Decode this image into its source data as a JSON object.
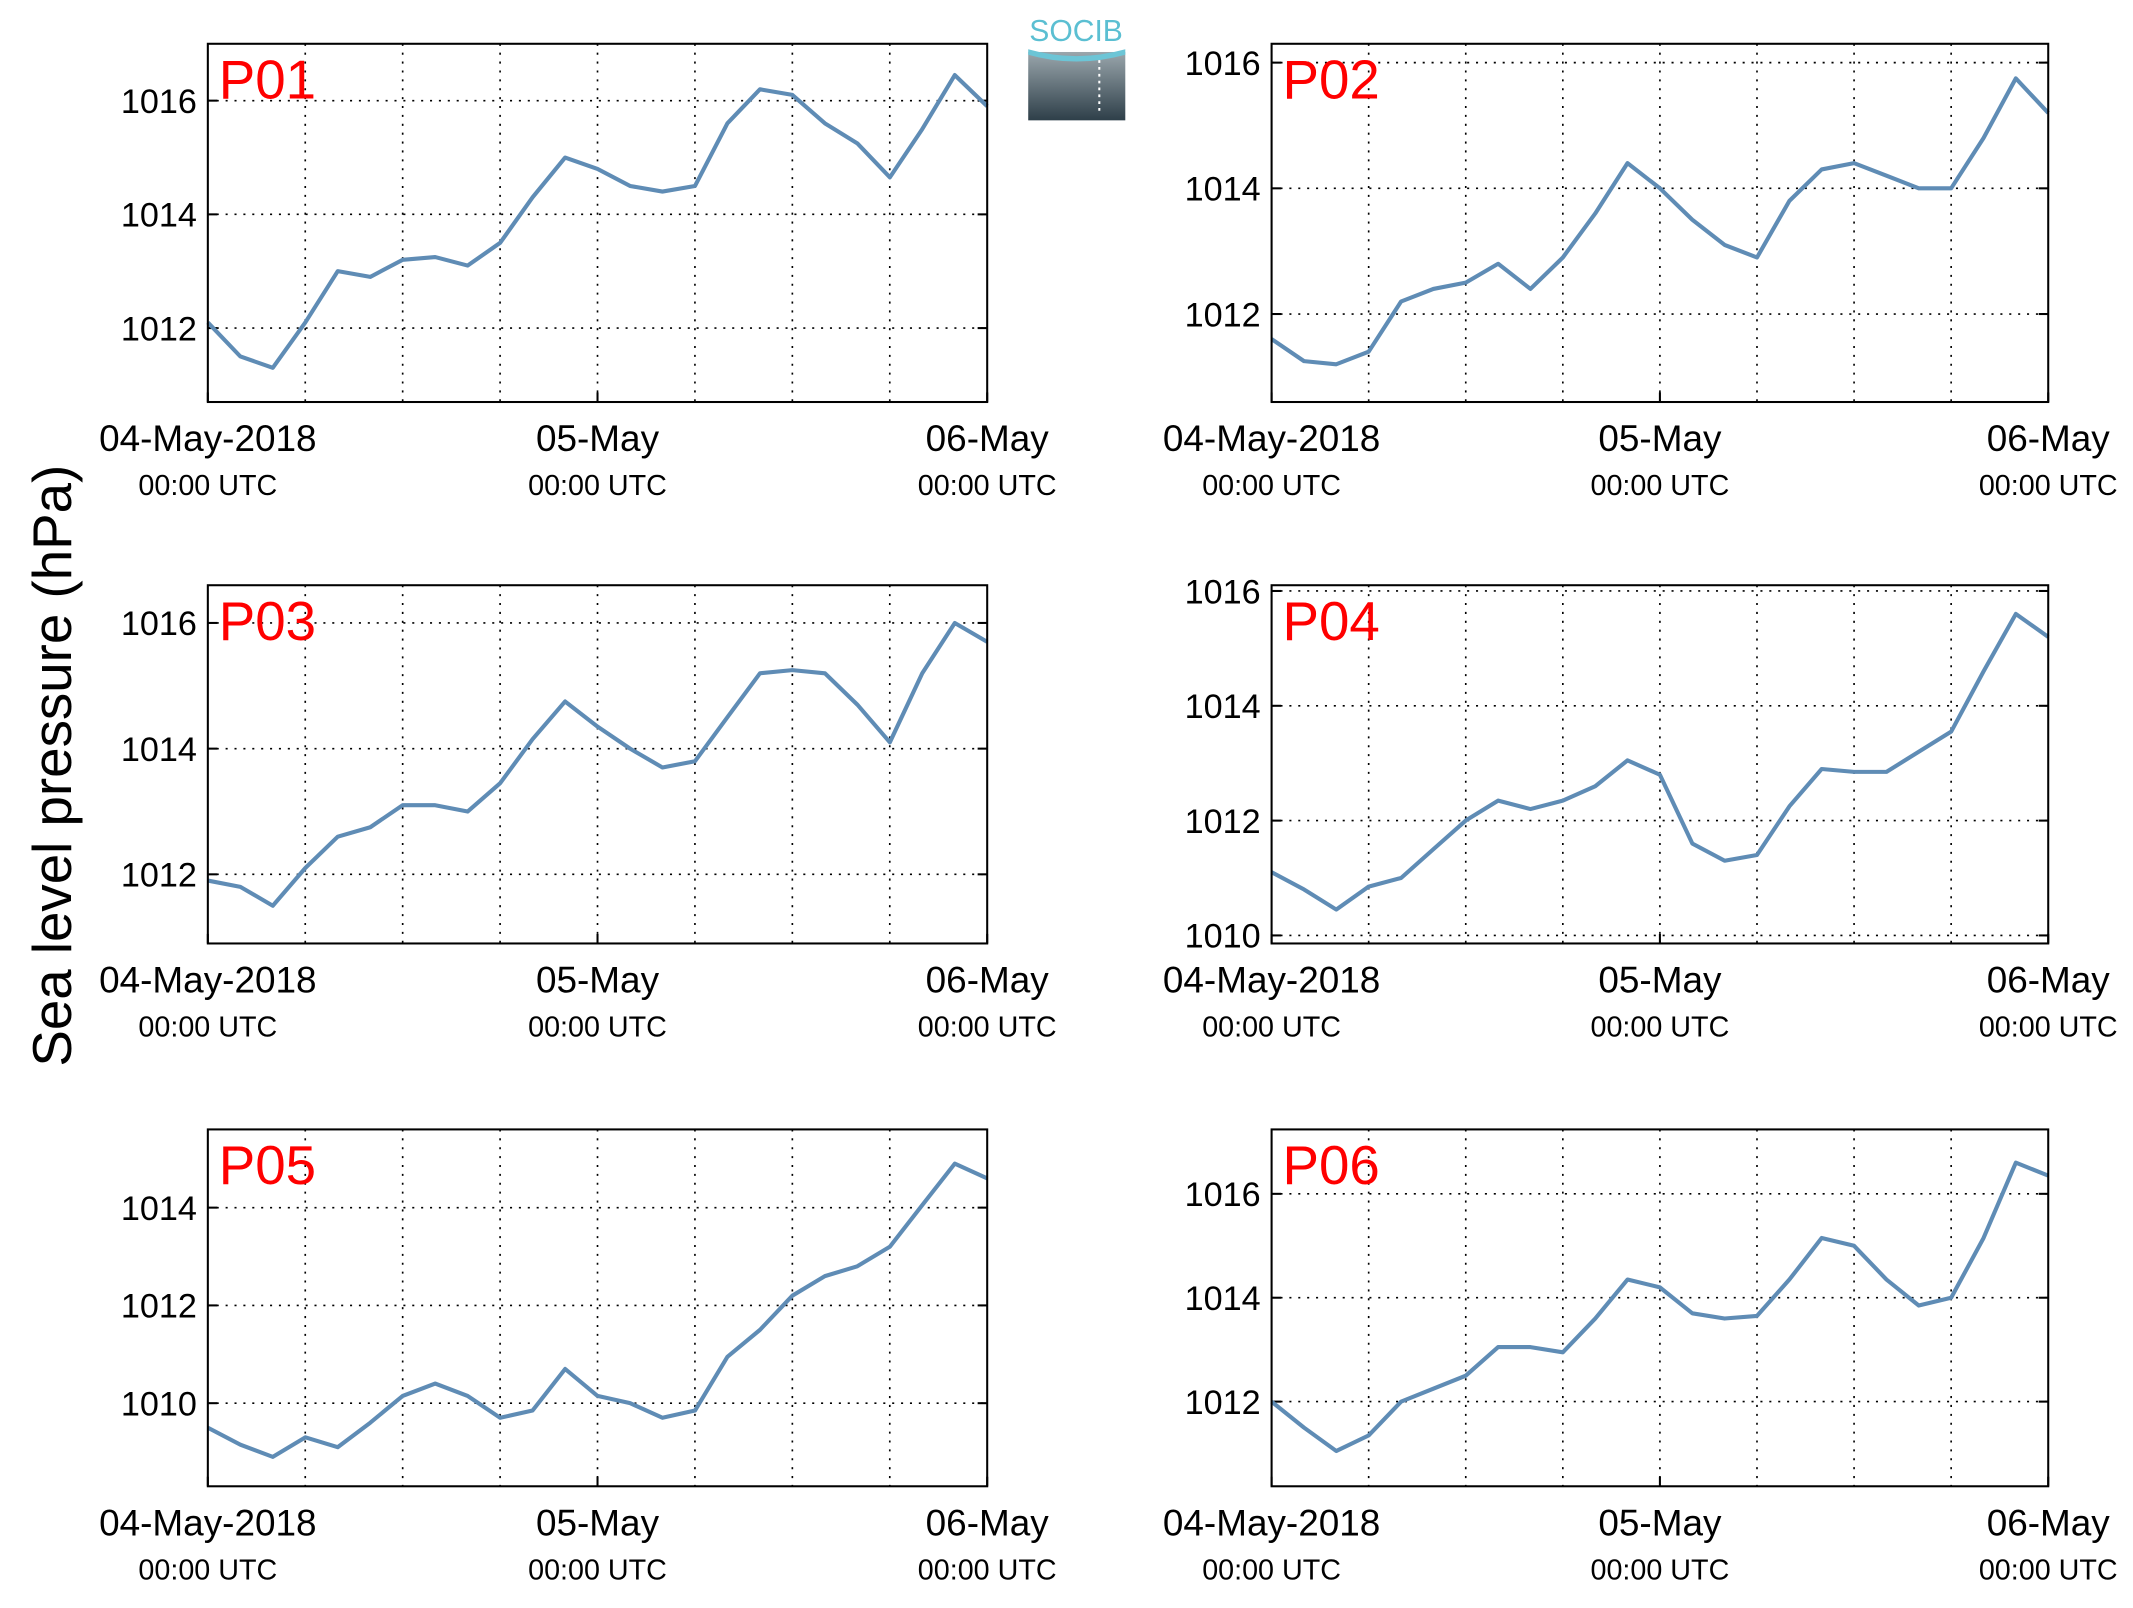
{
  "ylabel": "Sea level pressure (hPa)",
  "logo": "SOCIB",
  "chart_data": [
    {
      "type": "line",
      "title": "P01",
      "color": "#5f8cb5",
      "grid": true,
      "x": [
        "2018-05-04T00:00",
        "2018-05-04T02:00",
        "2018-05-04T04:00",
        "2018-05-04T06:00",
        "2018-05-04T08:00",
        "2018-05-04T10:00",
        "2018-05-04T12:00",
        "2018-05-04T14:00",
        "2018-05-04T16:00",
        "2018-05-04T18:00",
        "2018-05-04T20:00",
        "2018-05-04T22:00",
        "2018-05-05T00:00",
        "2018-05-05T02:00",
        "2018-05-05T04:00",
        "2018-05-05T06:00",
        "2018-05-05T08:00",
        "2018-05-05T10:00",
        "2018-05-05T12:00",
        "2018-05-05T14:00",
        "2018-05-05T16:00",
        "2018-05-05T18:00",
        "2018-05-05T20:00",
        "2018-05-05T22:00",
        "2018-05-06T00:00"
      ],
      "values": [
        1012.1,
        1011.5,
        1011.3,
        1012.1,
        1013.0,
        1012.9,
        1013.2,
        1013.25,
        1013.1,
        1013.5,
        1014.3,
        1015.0,
        1014.8,
        1014.5,
        1014.4,
        1014.5,
        1015.6,
        1016.2,
        1016.1,
        1015.6,
        1015.25,
        1014.65,
        1015.5,
        1016.45,
        1015.9
      ],
      "xlim": [
        "2018-05-04T00:00",
        "2018-05-06T00:00"
      ],
      "xticks": [
        {
          "value": "2018-05-04T00:00",
          "label": "04-May-2018",
          "sublabel": "00:00 UTC"
        },
        {
          "value": "2018-05-05T00:00",
          "label": "05-May",
          "sublabel": "00:00 UTC"
        },
        {
          "value": "2018-05-06T00:00",
          "label": "06-May",
          "sublabel": "00:00 UTC"
        }
      ],
      "xgrid": [
        "2018-05-04T06:00",
        "2018-05-04T12:00",
        "2018-05-04T18:00",
        "2018-05-05T00:00",
        "2018-05-05T06:00",
        "2018-05-05T12:00",
        "2018-05-05T18:00"
      ],
      "ylim": [
        1010.7,
        1017.0
      ],
      "yticks": [
        1012,
        1014,
        1016
      ]
    },
    {
      "type": "line",
      "title": "P02",
      "color": "#5f8cb5",
      "grid": true,
      "x": [
        "2018-05-04T00:00",
        "2018-05-04T02:00",
        "2018-05-04T04:00",
        "2018-05-04T06:00",
        "2018-05-04T08:00",
        "2018-05-04T10:00",
        "2018-05-04T12:00",
        "2018-05-04T14:00",
        "2018-05-04T16:00",
        "2018-05-04T18:00",
        "2018-05-04T20:00",
        "2018-05-04T22:00",
        "2018-05-05T00:00",
        "2018-05-05T02:00",
        "2018-05-05T04:00",
        "2018-05-05T06:00",
        "2018-05-05T08:00",
        "2018-05-05T10:00",
        "2018-05-05T12:00",
        "2018-05-05T14:00",
        "2018-05-05T16:00",
        "2018-05-05T18:00",
        "2018-05-05T20:00",
        "2018-05-05T22:00",
        "2018-05-06T00:00"
      ],
      "values": [
        1011.6,
        1011.25,
        1011.2,
        1011.4,
        1012.2,
        1012.4,
        1012.5,
        1012.8,
        1012.4,
        1012.9,
        1013.6,
        1014.4,
        1014.0,
        1013.5,
        1013.1,
        1012.9,
        1013.8,
        1014.3,
        1014.4,
        1014.2,
        1014.0,
        1014.0,
        1014.8,
        1015.75,
        1015.2
      ],
      "xlim": [
        "2018-05-04T00:00",
        "2018-05-06T00:00"
      ],
      "xticks": [
        {
          "value": "2018-05-04T00:00",
          "label": "04-May-2018",
          "sublabel": "00:00 UTC"
        },
        {
          "value": "2018-05-05T00:00",
          "label": "05-May",
          "sublabel": "00:00 UTC"
        },
        {
          "value": "2018-05-06T00:00",
          "label": "06-May",
          "sublabel": "00:00 UTC"
        }
      ],
      "xgrid": [
        "2018-05-04T06:00",
        "2018-05-04T12:00",
        "2018-05-04T18:00",
        "2018-05-05T00:00",
        "2018-05-05T06:00",
        "2018-05-05T12:00",
        "2018-05-05T18:00"
      ],
      "ylim": [
        1010.6,
        1016.3
      ],
      "yticks": [
        1012,
        1014,
        1016
      ]
    },
    {
      "type": "line",
      "title": "P03",
      "color": "#5f8cb5",
      "grid": true,
      "x": [
        "2018-05-04T00:00",
        "2018-05-04T02:00",
        "2018-05-04T04:00",
        "2018-05-04T06:00",
        "2018-05-04T08:00",
        "2018-05-04T10:00",
        "2018-05-04T12:00",
        "2018-05-04T14:00",
        "2018-05-04T16:00",
        "2018-05-04T18:00",
        "2018-05-04T20:00",
        "2018-05-04T22:00",
        "2018-05-05T00:00",
        "2018-05-05T02:00",
        "2018-05-05T04:00",
        "2018-05-05T06:00",
        "2018-05-05T08:00",
        "2018-05-05T10:00",
        "2018-05-05T12:00",
        "2018-05-05T14:00",
        "2018-05-05T16:00",
        "2018-05-05T18:00",
        "2018-05-05T20:00",
        "2018-05-05T22:00",
        "2018-05-06T00:00"
      ],
      "values": [
        1011.9,
        1011.8,
        1011.5,
        1012.1,
        1012.6,
        1012.75,
        1013.1,
        1013.1,
        1013.0,
        1013.45,
        1014.15,
        1014.75,
        1014.35,
        1014.0,
        1013.7,
        1013.8,
        1014.5,
        1015.2,
        1015.25,
        1015.2,
        1014.7,
        1014.1,
        1015.2,
        1016.0,
        1015.7
      ],
      "xlim": [
        "2018-05-04T00:00",
        "2018-05-06T00:00"
      ],
      "xticks": [
        {
          "value": "2018-05-04T00:00",
          "label": "04-May-2018",
          "sublabel": "00:00 UTC"
        },
        {
          "value": "2018-05-05T00:00",
          "label": "05-May",
          "sublabel": "00:00 UTC"
        },
        {
          "value": "2018-05-06T00:00",
          "label": "06-May",
          "sublabel": "00:00 UTC"
        }
      ],
      "xgrid": [
        "2018-05-04T06:00",
        "2018-05-04T12:00",
        "2018-05-04T18:00",
        "2018-05-05T00:00",
        "2018-05-05T06:00",
        "2018-05-05T12:00",
        "2018-05-05T18:00"
      ],
      "ylim": [
        1010.9,
        1016.6
      ],
      "yticks": [
        1012,
        1014,
        1016
      ]
    },
    {
      "type": "line",
      "title": "P04",
      "color": "#5f8cb5",
      "grid": true,
      "x": [
        "2018-05-04T00:00",
        "2018-05-04T02:00",
        "2018-05-04T04:00",
        "2018-05-04T06:00",
        "2018-05-04T08:00",
        "2018-05-04T10:00",
        "2018-05-04T12:00",
        "2018-05-04T14:00",
        "2018-05-04T16:00",
        "2018-05-04T18:00",
        "2018-05-04T20:00",
        "2018-05-04T22:00",
        "2018-05-05T00:00",
        "2018-05-05T02:00",
        "2018-05-05T04:00",
        "2018-05-05T06:00",
        "2018-05-05T08:00",
        "2018-05-05T10:00",
        "2018-05-05T12:00",
        "2018-05-05T14:00",
        "2018-05-05T16:00",
        "2018-05-05T18:00",
        "2018-05-05T20:00",
        "2018-05-05T22:00",
        "2018-05-06T00:00"
      ],
      "values": [
        1011.1,
        1010.8,
        1010.45,
        1010.85,
        1011.0,
        1011.5,
        1012.0,
        1012.35,
        1012.2,
        1012.35,
        1012.6,
        1013.05,
        1012.8,
        1011.6,
        1011.3,
        1011.4,
        1012.25,
        1012.9,
        1012.85,
        1012.85,
        1013.2,
        1013.55,
        1014.6,
        1015.6,
        1015.2
      ],
      "xlim": [
        "2018-05-04T00:00",
        "2018-05-06T00:00"
      ],
      "xticks": [
        {
          "value": "2018-05-04T00:00",
          "label": "04-May-2018",
          "sublabel": "00:00 UTC"
        },
        {
          "value": "2018-05-05T00:00",
          "label": "05-May",
          "sublabel": "00:00 UTC"
        },
        {
          "value": "2018-05-06T00:00",
          "label": "06-May",
          "sublabel": "00:00 UTC"
        }
      ],
      "xgrid": [
        "2018-05-04T06:00",
        "2018-05-04T12:00",
        "2018-05-04T18:00",
        "2018-05-05T00:00",
        "2018-05-05T06:00",
        "2018-05-05T12:00",
        "2018-05-05T18:00"
      ],
      "ylim": [
        1009.86,
        1016.1
      ],
      "yticks": [
        1010,
        1012,
        1014,
        1016
      ]
    },
    {
      "type": "line",
      "title": "P05",
      "color": "#5f8cb5",
      "grid": true,
      "x": [
        "2018-05-04T00:00",
        "2018-05-04T02:00",
        "2018-05-04T04:00",
        "2018-05-04T06:00",
        "2018-05-04T08:00",
        "2018-05-04T10:00",
        "2018-05-04T12:00",
        "2018-05-04T14:00",
        "2018-05-04T16:00",
        "2018-05-04T18:00",
        "2018-05-04T20:00",
        "2018-05-04T22:00",
        "2018-05-05T00:00",
        "2018-05-05T02:00",
        "2018-05-05T04:00",
        "2018-05-05T06:00",
        "2018-05-05T08:00",
        "2018-05-05T10:00",
        "2018-05-05T12:00",
        "2018-05-05T14:00",
        "2018-05-05T16:00",
        "2018-05-05T18:00",
        "2018-05-05T20:00",
        "2018-05-05T22:00",
        "2018-05-06T00:00"
      ],
      "values": [
        1009.5,
        1009.15,
        1008.9,
        1009.3,
        1009.1,
        1009.6,
        1010.15,
        1010.4,
        1010.15,
        1009.7,
        1009.85,
        1010.7,
        1010.15,
        1010.0,
        1009.7,
        1009.85,
        1010.95,
        1011.5,
        1012.2,
        1012.6,
        1012.8,
        1013.2,
        1014.05,
        1014.9,
        1014.6
      ],
      "xlim": [
        "2018-05-04T00:00",
        "2018-05-06T00:00"
      ],
      "xticks": [
        {
          "value": "2018-05-04T00:00",
          "label": "04-May-2018",
          "sublabel": "00:00 UTC"
        },
        {
          "value": "2018-05-05T00:00",
          "label": "05-May",
          "sublabel": "00:00 UTC"
        },
        {
          "value": "2018-05-06T00:00",
          "label": "06-May",
          "sublabel": "00:00 UTC"
        }
      ],
      "xgrid": [
        "2018-05-04T06:00",
        "2018-05-04T12:00",
        "2018-05-04T18:00",
        "2018-05-05T00:00",
        "2018-05-05T06:00",
        "2018-05-05T12:00",
        "2018-05-05T18:00"
      ],
      "ylim": [
        1008.3,
        1015.6
      ],
      "yticks": [
        1010,
        1012,
        1014
      ]
    },
    {
      "type": "line",
      "title": "P06",
      "color": "#5f8cb5",
      "grid": true,
      "x": [
        "2018-05-04T00:00",
        "2018-05-04T02:00",
        "2018-05-04T04:00",
        "2018-05-04T06:00",
        "2018-05-04T08:00",
        "2018-05-04T10:00",
        "2018-05-04T12:00",
        "2018-05-04T14:00",
        "2018-05-04T16:00",
        "2018-05-04T18:00",
        "2018-05-04T20:00",
        "2018-05-04T22:00",
        "2018-05-05T00:00",
        "2018-05-05T02:00",
        "2018-05-05T04:00",
        "2018-05-05T06:00",
        "2018-05-05T08:00",
        "2018-05-05T10:00",
        "2018-05-05T12:00",
        "2018-05-05T14:00",
        "2018-05-05T16:00",
        "2018-05-05T18:00",
        "2018-05-05T20:00",
        "2018-05-05T22:00",
        "2018-05-06T00:00"
      ],
      "values": [
        1012.0,
        1011.5,
        1011.05,
        1011.35,
        1012.0,
        1012.25,
        1012.5,
        1013.05,
        1013.05,
        1012.95,
        1013.6,
        1014.35,
        1014.2,
        1013.7,
        1013.6,
        1013.65,
        1014.35,
        1015.15,
        1015.0,
        1014.35,
        1013.85,
        1014.0,
        1015.15,
        1016.6,
        1016.35
      ],
      "xlim": [
        "2018-05-04T00:00",
        "2018-05-06T00:00"
      ],
      "xticks": [
        {
          "value": "2018-05-04T00:00",
          "label": "04-May-2018",
          "sublabel": "00:00 UTC"
        },
        {
          "value": "2018-05-05T00:00",
          "label": "05-May",
          "sublabel": "00:00 UTC"
        },
        {
          "value": "2018-05-06T00:00",
          "label": "06-May",
          "sublabel": "00:00 UTC"
        }
      ],
      "xgrid": [
        "2018-05-04T06:00",
        "2018-05-04T12:00",
        "2018-05-04T18:00",
        "2018-05-05T00:00",
        "2018-05-05T06:00",
        "2018-05-05T12:00",
        "2018-05-05T18:00"
      ],
      "ylim": [
        1010.37,
        1017.24
      ],
      "yticks": [
        1012,
        1014,
        1016
      ]
    }
  ]
}
